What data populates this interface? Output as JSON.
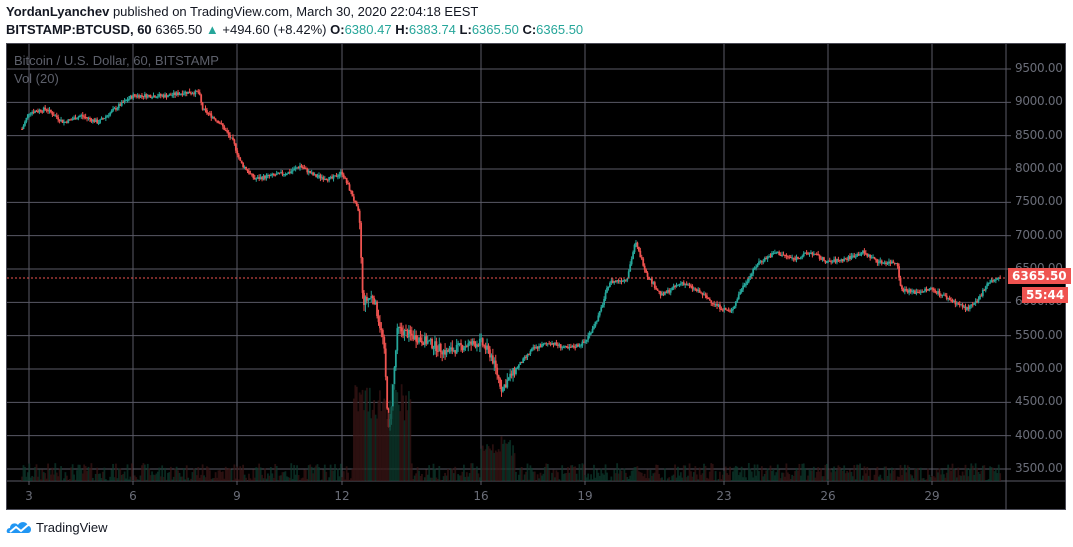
{
  "header": {
    "author": "YordanLyanchev",
    "published_text": "published on TradingView.com, March 30, 2020 22:04:18 EEST",
    "symbol": "BITSTAMP:BTCUSD, 60",
    "last_price": "6365.50",
    "change_arrow": "▲",
    "change": "+494.60 (+8.42%)",
    "o_label": "O:",
    "o_value": "6380.47",
    "h_label": "H:",
    "h_value": "6383.74",
    "l_label": "L:",
    "l_value": "6365.50",
    "c_label": "C:",
    "c_value": "6365.50"
  },
  "legend": {
    "series_title": "Bitcoin / U.S. Dollar, 60, BITSTAMP",
    "volume_title": "Vol (20)"
  },
  "price_tag": {
    "value": "6365.50",
    "countdown": "55:44",
    "color": "#ef5350"
  },
  "footer": {
    "brand": "TradingView",
    "logo_color": "#2196f3"
  },
  "colors": {
    "up": "#26a69a",
    "down": "#ef5350",
    "grid": "#5a5a66",
    "axis_text": "#6a6d78"
  },
  "chart_data": {
    "type": "candlestick",
    "title": "Bitcoin / U.S. Dollar, 60, BITSTAMP",
    "interval": "60",
    "xlabel": "",
    "ylabel": "",
    "ylim": [
      3300,
      9900
    ],
    "y_ticks": [
      "9500.00",
      "9000.00",
      "8500.00",
      "8000.00",
      "7500.00",
      "7000.00",
      "6500.00",
      "6000.00",
      "5500.00",
      "5000.00",
      "4500.00",
      "4000.00",
      "3500.00"
    ],
    "x_ticks": [
      "3",
      "6",
      "9",
      "12",
      "16",
      "19",
      "23",
      "26",
      "29"
    ],
    "grid": true,
    "last_price_line": 6365.5,
    "approx_close_path": [
      {
        "day": 2.8,
        "close": 8600
      },
      {
        "day": 3.0,
        "close": 8850
      },
      {
        "day": 3.5,
        "close": 8900
      },
      {
        "day": 4.0,
        "close": 8700
      },
      {
        "day": 4.5,
        "close": 8800
      },
      {
        "day": 5.0,
        "close": 8700
      },
      {
        "day": 5.6,
        "close": 8950
      },
      {
        "day": 6.0,
        "close": 9100
      },
      {
        "day": 6.5,
        "close": 9100
      },
      {
        "day": 7.0,
        "close": 9100
      },
      {
        "day": 7.5,
        "close": 9150
      },
      {
        "day": 7.9,
        "close": 9150
      },
      {
        "day": 8.0,
        "close": 8900
      },
      {
        "day": 8.5,
        "close": 8700
      },
      {
        "day": 8.9,
        "close": 8400
      },
      {
        "day": 9.1,
        "close": 8100
      },
      {
        "day": 9.5,
        "close": 7850
      },
      {
        "day": 10.0,
        "close": 7900
      },
      {
        "day": 10.5,
        "close": 7950
      },
      {
        "day": 10.8,
        "close": 8050
      },
      {
        "day": 11.2,
        "close": 7900
      },
      {
        "day": 11.7,
        "close": 7850
      },
      {
        "day": 12.0,
        "close": 7950
      },
      {
        "day": 12.3,
        "close": 7600
      },
      {
        "day": 12.5,
        "close": 7300
      },
      {
        "day": 12.6,
        "close": 6000
      },
      {
        "day": 12.9,
        "close": 6100
      },
      {
        "day": 13.2,
        "close": 5400
      },
      {
        "day": 13.35,
        "close": 4000
      },
      {
        "day": 13.6,
        "close": 5600
      },
      {
        "day": 14.0,
        "close": 5500
      },
      {
        "day": 14.5,
        "close": 5400
      },
      {
        "day": 15.0,
        "close": 5250
      },
      {
        "day": 15.5,
        "close": 5350
      },
      {
        "day": 16.0,
        "close": 5400
      },
      {
        "day": 16.3,
        "close": 5200
      },
      {
        "day": 16.6,
        "close": 4700
      },
      {
        "day": 17.0,
        "close": 5000
      },
      {
        "day": 17.5,
        "close": 5300
      },
      {
        "day": 18.0,
        "close": 5400
      },
      {
        "day": 18.5,
        "close": 5300
      },
      {
        "day": 19.0,
        "close": 5400
      },
      {
        "day": 19.4,
        "close": 5800
      },
      {
        "day": 19.7,
        "close": 6300
      },
      {
        "day": 20.2,
        "close": 6350
      },
      {
        "day": 20.45,
        "close": 6900
      },
      {
        "day": 20.8,
        "close": 6400
      },
      {
        "day": 21.2,
        "close": 6100
      },
      {
        "day": 21.8,
        "close": 6300
      },
      {
        "day": 22.3,
        "close": 6150
      },
      {
        "day": 22.8,
        "close": 5950
      },
      {
        "day": 23.2,
        "close": 5850
      },
      {
        "day": 23.5,
        "close": 6200
      },
      {
        "day": 24.0,
        "close": 6600
      },
      {
        "day": 24.5,
        "close": 6750
      },
      {
        "day": 25.0,
        "close": 6650
      },
      {
        "day": 25.5,
        "close": 6750
      },
      {
        "day": 26.0,
        "close": 6600
      },
      {
        "day": 26.5,
        "close": 6650
      },
      {
        "day": 27.0,
        "close": 6750
      },
      {
        "day": 27.5,
        "close": 6600
      },
      {
        "day": 28.0,
        "close": 6600
      },
      {
        "day": 28.1,
        "close": 6200
      },
      {
        "day": 28.5,
        "close": 6150
      },
      {
        "day": 29.0,
        "close": 6200
      },
      {
        "day": 29.5,
        "close": 6050
      },
      {
        "day": 30.0,
        "close": 5900
      },
      {
        "day": 30.3,
        "close": 6000
      },
      {
        "day": 30.6,
        "close": 6300
      },
      {
        "day": 31.0,
        "close": 6365.5
      }
    ]
  }
}
